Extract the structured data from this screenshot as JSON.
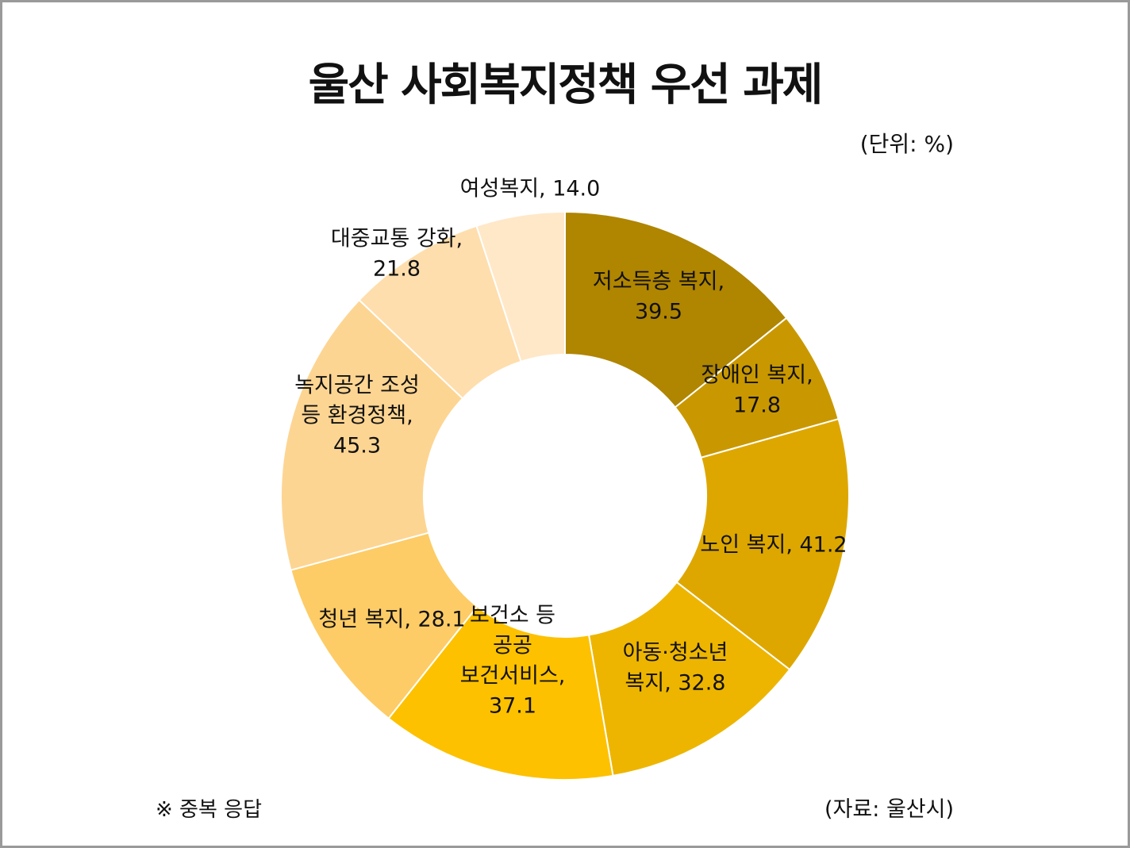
{
  "title": "울산 사회복지정책 우선 과제",
  "unit": "(단위: %)",
  "footnote": "※ 중복 응답",
  "source": "(자료: 울산시)",
  "chart_data": {
    "type": "pie",
    "variant": "donut",
    "start_angle_deg": 0,
    "direction": "clockwise",
    "slices": [
      {
        "label_lines": [
          "저소득층 복지,",
          "39.5"
        ],
        "category": "저소득층 복지",
        "value": 39.5,
        "color": "#B08500"
      },
      {
        "label_lines": [
          "장애인 복지,",
          "17.8"
        ],
        "category": "장애인 복지",
        "value": 17.8,
        "color": "#C99800"
      },
      {
        "label_lines": [
          "노인 복지, 41.2"
        ],
        "category": "노인 복지",
        "value": 41.2,
        "color": "#DDA700"
      },
      {
        "label_lines": [
          "아동·청소년",
          "복지, 32.8"
        ],
        "category": "아동·청소년 복지",
        "value": 32.8,
        "color": "#EDB500"
      },
      {
        "label_lines": [
          "보건소 등",
          "공공",
          "보건서비스,",
          "37.1"
        ],
        "category": "보건소 등 공공 보건서비스",
        "value": 37.1,
        "color": "#FDC100"
      },
      {
        "label_lines": [
          "청년 복지, 28.1"
        ],
        "category": "청년 복지",
        "value": 28.1,
        "color": "#FDCC66"
      },
      {
        "label_lines": [
          "녹지공간 조성",
          "등 환경정책,",
          "45.3"
        ],
        "category": "녹지공간 조성 등 환경정책",
        "value": 45.3,
        "color": "#FDD592"
      },
      {
        "label_lines": [
          "대중교통 강화,",
          "21.8"
        ],
        "category": "대중교통 강화",
        "value": 21.8,
        "color": "#FEDEAD"
      },
      {
        "label_lines": [
          "여성복지, 14.0"
        ],
        "category": "여성복지",
        "value": 14.0,
        "color": "#FFE8C8"
      }
    ]
  }
}
